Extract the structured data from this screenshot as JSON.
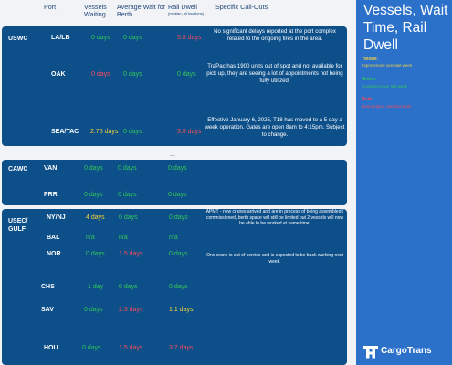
{
  "header": {
    "port": "Port",
    "vessels_waiting": "Vessels Waiting",
    "avg_wait": "Average Wait for Berth",
    "rail_dwell": "Rail Dwell",
    "rail_dwell_sub": "(median, all locations)",
    "callouts": "Specific Call-Outs"
  },
  "regions": {
    "uswc": "USWC",
    "cawc": "CAWC",
    "usec_line1": "USEC/",
    "usec_line2": "GULF"
  },
  "rows": [
    {
      "port": "LA/LB",
      "vessels": "0 days",
      "vessels_color": "green",
      "wait": "0 days",
      "wait_color": "green",
      "rail": "5.8 days",
      "rail_color": "red",
      "callout": "No significant delays reported at the port complex related to the ongoing fires in the area."
    },
    {
      "port": "OAK",
      "vessels": "0 days",
      "vessels_color": "red",
      "wait": "0 days",
      "wait_color": "green",
      "rail": "0 days",
      "rail_color": "green",
      "callout": "TraPac has 1900 units out of spot and not available for pick up, they are seeing a lot of appointments not being fully utilized."
    },
    {
      "port": "SEA/TAC",
      "vessels": "2.75 days",
      "vessels_color": "yellow",
      "wait": "0 days",
      "wait_color": "green",
      "rail": "3.8 days",
      "rail_color": "red",
      "callout": "Effective January 6, 2025, T18 has moved to a 5 day a week operation. Gates are open 8am to 4:15pm. Subject to change."
    },
    {
      "port": "VAN",
      "vessels": "0 days",
      "vessels_color": "green",
      "wait": "0 days",
      "wait_color": "green",
      "rail": "0 days",
      "rail_color": "green",
      "callout": ""
    },
    {
      "port": "PRR",
      "vessels": "0 days",
      "vessels_color": "green",
      "wait": "0 days",
      "wait_color": "green",
      "rail": "0 days",
      "rail_color": "green",
      "callout": ""
    },
    {
      "port": "NY/NJ",
      "vessels": "4 days",
      "vessels_color": "yellow",
      "wait": "0 days",
      "wait_color": "green",
      "rail": "0 days",
      "rail_color": "green",
      "callout": "APMT - new cranes arrived and are in process of being assembled / commissioned, berth space will still be limited but 2 vessels will now be able to be worked at same time."
    },
    {
      "port": "BAL",
      "vessels": "n/a",
      "vessels_color": "green",
      "wait": "n/a",
      "wait_color": "green",
      "rail": "n/a",
      "rail_color": "green",
      "callout": ""
    },
    {
      "port": "NOR",
      "vessels": "0 days",
      "vessels_color": "green",
      "wait": "1.5 days",
      "wait_color": "red",
      "rail": "0 days",
      "rail_color": "green",
      "callout": "One crane is out of service and is expected to be back working next week."
    },
    {
      "port": "CHS",
      "vessels": "1 day",
      "vessels_color": "green",
      "wait": "0 days",
      "wait_color": "green",
      "rail": "0 days",
      "rail_color": "green",
      "callout": ""
    },
    {
      "port": "SAV",
      "vessels": "0 days",
      "vessels_color": "green",
      "wait": "2.3 days",
      "wait_color": "red",
      "rail": "1.1 days",
      "rail_color": "yellow",
      "callout": ""
    },
    {
      "port": "HOU",
      "vessels": "0 days",
      "vessels_color": "green",
      "wait": "1.5 days",
      "wait_color": "red",
      "rail": "3.7 days",
      "rail_color": "red",
      "callout": ""
    }
  ],
  "separator": "...",
  "sidebar": {
    "title": "Vessels, Wait Time, Rail Dwell",
    "legend": [
      {
        "label": "Yellow:",
        "desc": "Improvement over last week",
        "color": "#f5d33c"
      },
      {
        "label": "Green:",
        "desc": "Consistent over last week",
        "color": "#34c759"
      },
      {
        "label": "Red:",
        "desc": "Deterioration over last week",
        "color": "#ff4a5a"
      }
    ],
    "brand": "CargoTrans"
  },
  "colors": {
    "panel": "#0d4f89",
    "sidebar": "#2b70c9",
    "header_text": "#23487a"
  }
}
